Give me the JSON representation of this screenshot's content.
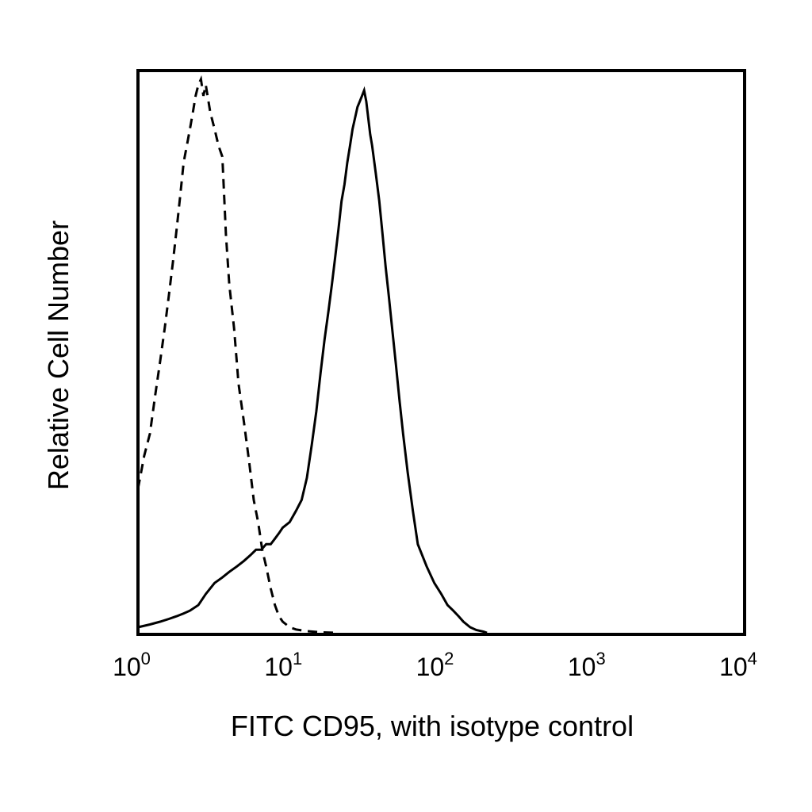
{
  "chart_data": {
    "type": "line",
    "title": "",
    "xlabel": "FITC CD95, with isotype control",
    "ylabel": "Relative Cell Number",
    "x_scale": "log",
    "xlim": [
      1,
      10000
    ],
    "ylim": [
      0,
      100
    ],
    "grid": false,
    "legend": "none",
    "x_ticks": [
      {
        "base": "10",
        "exp": "0",
        "value": 1
      },
      {
        "base": "10",
        "exp": "1",
        "value": 10
      },
      {
        "base": "10",
        "exp": "2",
        "value": 100
      },
      {
        "base": "10",
        "exp": "3",
        "value": 1000
      },
      {
        "base": "10",
        "exp": "4",
        "value": 10000
      }
    ],
    "series": [
      {
        "style": "dashed",
        "color": "#000000",
        "points": [
          [
            1.0,
            26
          ],
          [
            1.1,
            32
          ],
          [
            1.2,
            36
          ],
          [
            1.3,
            43
          ],
          [
            1.4,
            49
          ],
          [
            1.5,
            55
          ],
          [
            1.6,
            61
          ],
          [
            1.7,
            67
          ],
          [
            1.8,
            73
          ],
          [
            1.9,
            79
          ],
          [
            2.0,
            85
          ],
          [
            2.1,
            88
          ],
          [
            2.2,
            91
          ],
          [
            2.3,
            94
          ],
          [
            2.4,
            97
          ],
          [
            2.5,
            99
          ],
          [
            2.6,
            100
          ],
          [
            2.7,
            97
          ],
          [
            2.8,
            99
          ],
          [
            3.0,
            94
          ],
          [
            3.2,
            91
          ],
          [
            3.4,
            88
          ],
          [
            3.6,
            86
          ],
          [
            3.8,
            72
          ],
          [
            4.0,
            63
          ],
          [
            4.3,
            55
          ],
          [
            4.6,
            45
          ],
          [
            5.0,
            38
          ],
          [
            5.4,
            31
          ],
          [
            5.8,
            24
          ],
          [
            6.2,
            20
          ],
          [
            6.6,
            15
          ],
          [
            7.0,
            12
          ],
          [
            7.5,
            8
          ],
          [
            8.0,
            5
          ],
          [
            8.5,
            3
          ],
          [
            9.0,
            2
          ],
          [
            10,
            1
          ],
          [
            11,
            0.6
          ],
          [
            13,
            0.3
          ],
          [
            16,
            0.1
          ],
          [
            20,
            0
          ]
        ]
      },
      {
        "style": "solid",
        "color": "#000000",
        "points": [
          [
            1.0,
            1
          ],
          [
            1.2,
            1.5
          ],
          [
            1.4,
            2
          ],
          [
            1.6,
            2.5
          ],
          [
            1.8,
            3
          ],
          [
            2.0,
            3.5
          ],
          [
            2.2,
            4
          ],
          [
            2.5,
            5
          ],
          [
            2.8,
            7
          ],
          [
            3.2,
            9
          ],
          [
            3.6,
            10
          ],
          [
            4.0,
            11
          ],
          [
            4.5,
            12
          ],
          [
            5.0,
            13
          ],
          [
            5.5,
            14
          ],
          [
            6.0,
            15
          ],
          [
            6.5,
            15
          ],
          [
            7.0,
            16
          ],
          [
            7.5,
            16
          ],
          [
            8.0,
            17
          ],
          [
            8.5,
            18
          ],
          [
            9.0,
            19
          ],
          [
            10,
            20
          ],
          [
            11,
            22
          ],
          [
            12,
            24
          ],
          [
            13,
            28
          ],
          [
            14,
            34
          ],
          [
            15,
            40
          ],
          [
            16,
            47
          ],
          [
            17,
            53
          ],
          [
            18,
            58
          ],
          [
            19,
            63
          ],
          [
            20,
            68
          ],
          [
            21,
            73
          ],
          [
            22,
            78
          ],
          [
            23,
            81
          ],
          [
            24,
            85
          ],
          [
            25,
            88
          ],
          [
            26,
            91
          ],
          [
            27,
            93
          ],
          [
            28,
            95
          ],
          [
            29,
            96
          ],
          [
            30,
            97
          ],
          [
            31,
            98
          ],
          [
            32,
            96
          ],
          [
            33,
            93
          ],
          [
            34,
            90
          ],
          [
            35,
            88
          ],
          [
            37,
            83
          ],
          [
            39,
            78
          ],
          [
            41,
            72
          ],
          [
            43,
            66
          ],
          [
            45,
            61
          ],
          [
            47,
            56
          ],
          [
            50,
            49
          ],
          [
            53,
            42
          ],
          [
            56,
            36
          ],
          [
            60,
            29
          ],
          [
            65,
            22
          ],
          [
            70,
            16
          ],
          [
            80,
            12
          ],
          [
            90,
            9
          ],
          [
            100,
            7
          ],
          [
            110,
            5
          ],
          [
            120,
            4
          ],
          [
            130,
            3
          ],
          [
            140,
            2
          ],
          [
            155,
            1
          ],
          [
            170,
            0.5
          ],
          [
            190,
            0.2
          ],
          [
            200,
            0
          ]
        ]
      }
    ]
  }
}
